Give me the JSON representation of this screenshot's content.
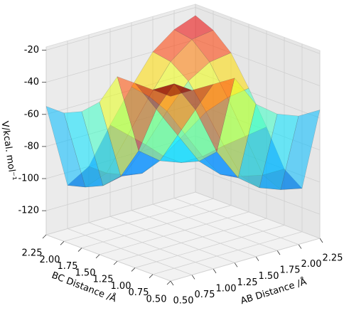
{
  "chart_data": {
    "type": "surface3d",
    "xlabel": "AB Distance /Å",
    "ylabel": "BC Distance /Å",
    "zlabel": "V/kcal. mol⁻¹",
    "x": [
      0.5,
      0.75,
      1.0,
      1.25,
      1.5,
      1.75,
      2.0,
      2.25
    ],
    "y": [
      0.5,
      0.75,
      1.0,
      1.25,
      1.5,
      1.75,
      2.0,
      2.25
    ],
    "z": [
      [
        -20,
        -20,
        -20,
        -20,
        -40,
        -50,
        -55,
        -55
      ],
      [
        -20,
        -20,
        -40,
        -70,
        -90,
        -100,
        -105,
        -108
      ],
      [
        -20,
        -40,
        -60,
        -80,
        -92,
        -97,
        -100,
        -100
      ],
      [
        -20,
        -70,
        -80,
        -85,
        -85,
        -82,
        -80,
        -78
      ],
      [
        -40,
        -90,
        -92,
        -85,
        -75,
        -65,
        -60,
        -58
      ],
      [
        -50,
        -100,
        -97,
        -82,
        -65,
        -50,
        -42,
        -40
      ],
      [
        -55,
        -105,
        -100,
        -80,
        -60,
        -42,
        -32,
        -30
      ],
      [
        -55,
        -108,
        -100,
        -78,
        -58,
        -40,
        -30,
        -25
      ]
    ],
    "colormap": "jet",
    "xlim": [
      0.5,
      2.25
    ],
    "ylim": [
      0.5,
      2.25
    ],
    "zlim": [
      -135,
      -18
    ],
    "xticks": [
      {
        "value": 0.5,
        "label": "0.50"
      },
      0.75,
      {
        "value": 1.0,
        "label": "1.00"
      },
      1.25,
      {
        "value": 1.5,
        "label": "1.50"
      },
      1.75,
      {
        "value": 2.0,
        "label": "2.00"
      },
      2.25
    ],
    "yticks": [
      {
        "value": 0.5,
        "label": "0.50"
      },
      0.75,
      {
        "value": 1.0,
        "label": "1.00"
      },
      1.25,
      {
        "value": 1.5,
        "label": "1.50"
      },
      1.75,
      {
        "value": 2.0,
        "label": "2.00"
      },
      2.25
    ],
    "zticks": [
      -120,
      -100,
      -80,
      -60,
      -40,
      -20
    ],
    "grid": true
  }
}
